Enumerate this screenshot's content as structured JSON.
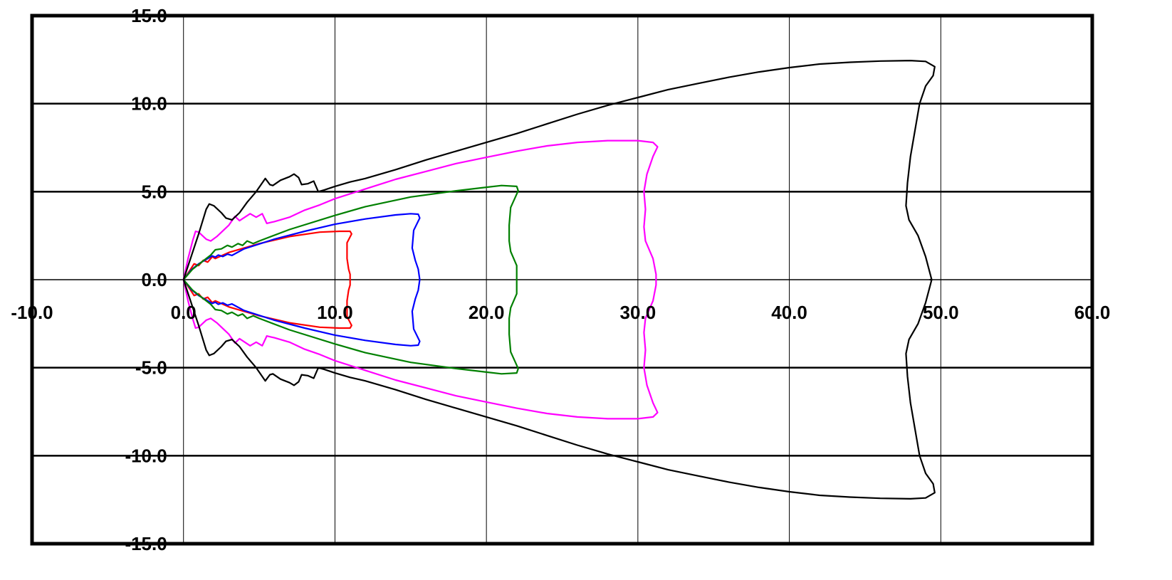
{
  "chart_data": {
    "type": "line",
    "title": "",
    "xlabel": "",
    "ylabel": "",
    "xlim": [
      -10,
      60
    ],
    "ylim": [
      -15,
      15
    ],
    "x_ticks": [
      -10,
      0,
      10,
      20,
      30,
      40,
      50,
      60
    ],
    "y_ticks": [
      -15,
      -10,
      -5,
      0,
      5,
      10,
      15
    ],
    "x_tick_labels": [
      "-10.0",
      "0.0",
      "10.0",
      "20.0",
      "30.0",
      "40.0",
      "50.0",
      "60.0"
    ],
    "y_tick_labels": [
      "-15.0",
      "-10.0",
      "-5.0",
      "0.0",
      "5.0",
      "10.0",
      "15.0"
    ],
    "grid": true,
    "legend": "none",
    "symmetric_about_x_axis": true,
    "series": [
      {
        "color": "#ff0000",
        "points": [
          [
            0,
            0
          ],
          [
            0.4,
            0.5
          ],
          [
            0.7,
            0.9
          ],
          [
            1.0,
            0.8
          ],
          [
            1.3,
            1.1
          ],
          [
            1.6,
            1.0
          ],
          [
            1.9,
            1.3
          ],
          [
            2.1,
            1.2
          ],
          [
            3.0,
            1.55
          ],
          [
            5,
            2.05
          ],
          [
            7,
            2.45
          ],
          [
            9,
            2.7
          ],
          [
            10.3,
            2.75
          ],
          [
            11.0,
            2.75
          ],
          [
            11.1,
            2.6
          ],
          [
            10.8,
            2.1
          ],
          [
            10.8,
            1.2
          ],
          [
            10.9,
            0.6
          ],
          [
            11.0,
            0.3
          ],
          [
            11.0,
            0
          ]
        ]
      },
      {
        "color": "#0000ff",
        "points": [
          [
            0,
            0
          ],
          [
            0.5,
            0.55
          ],
          [
            1.0,
            0.9
          ],
          [
            1.5,
            1.15
          ],
          [
            1.9,
            1.35
          ],
          [
            2.1,
            1.28
          ],
          [
            2.3,
            1.4
          ],
          [
            2.6,
            1.32
          ],
          [
            2.9,
            1.45
          ],
          [
            3.2,
            1.38
          ],
          [
            4,
            1.75
          ],
          [
            6,
            2.3
          ],
          [
            8,
            2.75
          ],
          [
            10,
            3.15
          ],
          [
            12,
            3.45
          ],
          [
            14,
            3.68
          ],
          [
            15.0,
            3.75
          ],
          [
            15.5,
            3.72
          ],
          [
            15.6,
            3.5
          ],
          [
            15.2,
            2.8
          ],
          [
            15.1,
            1.8
          ],
          [
            15.3,
            1.1
          ],
          [
            15.5,
            0.6
          ],
          [
            15.6,
            0
          ]
        ]
      },
      {
        "color": "#008000",
        "points": [
          [
            0,
            0
          ],
          [
            0.6,
            0.6
          ],
          [
            1.2,
            1.0
          ],
          [
            1.8,
            1.4
          ],
          [
            2.1,
            1.7
          ],
          [
            2.5,
            1.75
          ],
          [
            2.9,
            1.95
          ],
          [
            3.2,
            1.85
          ],
          [
            3.6,
            2.05
          ],
          [
            3.9,
            1.95
          ],
          [
            4.2,
            2.2
          ],
          [
            4.6,
            2.05
          ],
          [
            5,
            2.2
          ],
          [
            7,
            2.85
          ],
          [
            10,
            3.65
          ],
          [
            12,
            4.15
          ],
          [
            15,
            4.7
          ],
          [
            18,
            5.05
          ],
          [
            20,
            5.25
          ],
          [
            21,
            5.35
          ],
          [
            22.0,
            5.3
          ],
          [
            22.1,
            5.05
          ],
          [
            21.6,
            4.1
          ],
          [
            21.5,
            3.1
          ],
          [
            21.5,
            2.2
          ],
          [
            21.6,
            1.6
          ],
          [
            22.0,
            0.8
          ],
          [
            22.0,
            0
          ]
        ]
      },
      {
        "color": "#ff00ff",
        "points": [
          [
            0,
            0
          ],
          [
            0.3,
            1.2
          ],
          [
            0.6,
            2.2
          ],
          [
            0.8,
            2.75
          ],
          [
            1.0,
            2.7
          ],
          [
            1.5,
            2.3
          ],
          [
            1.8,
            2.2
          ],
          [
            2.2,
            2.45
          ],
          [
            3.0,
            3.1
          ],
          [
            3.4,
            3.6
          ],
          [
            3.7,
            3.35
          ],
          [
            4.4,
            3.75
          ],
          [
            4.8,
            3.55
          ],
          [
            5.2,
            3.75
          ],
          [
            5.5,
            3.2
          ],
          [
            6,
            3.3
          ],
          [
            7,
            3.55
          ],
          [
            8,
            3.95
          ],
          [
            9,
            4.25
          ],
          [
            10,
            4.6
          ],
          [
            12,
            5.15
          ],
          [
            14,
            5.7
          ],
          [
            16,
            6.15
          ],
          [
            18,
            6.6
          ],
          [
            20,
            6.95
          ],
          [
            22,
            7.3
          ],
          [
            24,
            7.6
          ],
          [
            26,
            7.8
          ],
          [
            28,
            7.9
          ],
          [
            30.0,
            7.9
          ],
          [
            31.0,
            7.8
          ],
          [
            31.3,
            7.55
          ],
          [
            31.0,
            7.0
          ],
          [
            30.6,
            6.0
          ],
          [
            30.4,
            5.0
          ],
          [
            30.5,
            4.0
          ],
          [
            30.4,
            3.0
          ],
          [
            30.5,
            2.2
          ],
          [
            31.0,
            1.2
          ],
          [
            31.2,
            0.3
          ],
          [
            31.2,
            0
          ]
        ]
      },
      {
        "color": "#000000",
        "points": [
          [
            0,
            0
          ],
          [
            0.5,
            1.3
          ],
          [
            1.0,
            2.6
          ],
          [
            1.5,
            4.0
          ],
          [
            1.7,
            4.3
          ],
          [
            2.0,
            4.2
          ],
          [
            2.5,
            3.8
          ],
          [
            2.8,
            3.5
          ],
          [
            3.2,
            3.4
          ],
          [
            3.7,
            3.8
          ],
          [
            4.2,
            4.4
          ],
          [
            4.8,
            5.0
          ],
          [
            5.4,
            5.75
          ],
          [
            5.7,
            5.4
          ],
          [
            5.9,
            5.35
          ],
          [
            6.4,
            5.65
          ],
          [
            7.0,
            5.85
          ],
          [
            7.3,
            6.0
          ],
          [
            7.6,
            5.8
          ],
          [
            7.8,
            5.4
          ],
          [
            8.2,
            5.45
          ],
          [
            8.6,
            5.6
          ],
          [
            8.9,
            5.0
          ],
          [
            9.3,
            5.1
          ],
          [
            10,
            5.3
          ],
          [
            11,
            5.55
          ],
          [
            12,
            5.75
          ],
          [
            14,
            6.25
          ],
          [
            16,
            6.8
          ],
          [
            18,
            7.3
          ],
          [
            20,
            7.8
          ],
          [
            22,
            8.3
          ],
          [
            24,
            8.85
          ],
          [
            26,
            9.4
          ],
          [
            28,
            9.9
          ],
          [
            30,
            10.35
          ],
          [
            32,
            10.8
          ],
          [
            34,
            11.15
          ],
          [
            36,
            11.5
          ],
          [
            38,
            11.8
          ],
          [
            40,
            12.05
          ],
          [
            42,
            12.25
          ],
          [
            44,
            12.35
          ],
          [
            46,
            12.42
          ],
          [
            48,
            12.45
          ],
          [
            49,
            12.4
          ],
          [
            49.6,
            12.1
          ],
          [
            49.5,
            11.6
          ],
          [
            49.0,
            11.0
          ],
          [
            48.6,
            10.0
          ],
          [
            48.3,
            8.5
          ],
          [
            48.0,
            7.0
          ],
          [
            47.8,
            5.5
          ],
          [
            47.7,
            4.2
          ],
          [
            47.9,
            3.4
          ],
          [
            48.5,
            2.5
          ],
          [
            49.0,
            1.3
          ],
          [
            49.4,
            0
          ],
          [
            49.3,
            0
          ]
        ]
      }
    ]
  }
}
